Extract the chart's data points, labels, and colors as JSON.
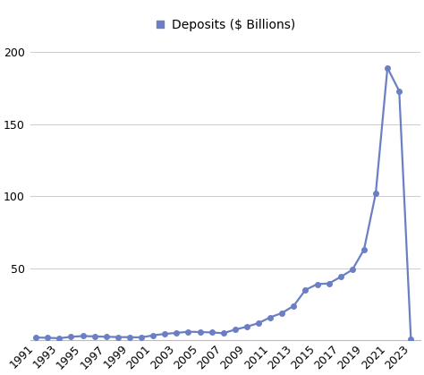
{
  "years": [
    1991,
    1992,
    1993,
    1994,
    1995,
    1996,
    1997,
    1998,
    1999,
    2000,
    2001,
    2002,
    2003,
    2004,
    2005,
    2006,
    2007,
    2008,
    2009,
    2010,
    2011,
    2012,
    2013,
    2014,
    2015,
    2016,
    2017,
    2018,
    2019,
    2020,
    2021,
    2022,
    2023
  ],
  "deposits": [
    2.0,
    1.8,
    1.5,
    2.5,
    3.0,
    2.8,
    2.5,
    2.3,
    2.2,
    2.1,
    3.5,
    4.5,
    5.2,
    6.0,
    5.8,
    5.5,
    5.0,
    7.5,
    9.5,
    12.0,
    16.0,
    19.0,
    24.0,
    35.0,
    39.0,
    39.5,
    44.0,
    49.0,
    63.0,
    102.0,
    189.0,
    173.0,
    1.0
  ],
  "line_color": "#6b7fc4",
  "marker_color": "#6b7fc4",
  "legend_label": "Deposits ($ Billions)",
  "ylim": [
    0,
    210
  ],
  "yticks": [
    0,
    50,
    100,
    150,
    200
  ],
  "ytick_labels": [
    "",
    "50",
    "100",
    "150",
    "200"
  ],
  "xtick_labels": [
    "1991",
    "1993",
    "1995",
    "1997",
    "1999",
    "2001",
    "2003",
    "2005",
    "2007",
    "2009",
    "2011",
    "2013",
    "2015",
    "2017",
    "2019",
    "2021",
    "2023"
  ],
  "xtick_values": [
    1991,
    1993,
    1995,
    1997,
    1999,
    2001,
    2003,
    2005,
    2007,
    2009,
    2011,
    2013,
    2015,
    2017,
    2019,
    2021,
    2023
  ],
  "grid_color": "#cccccc",
  "background_color": "#ffffff",
  "tick_fontsize": 9,
  "legend_fontsize": 10,
  "marker_size": 4,
  "line_width": 1.6,
  "xlim_left": 1990.5,
  "xlim_right": 2023.8
}
